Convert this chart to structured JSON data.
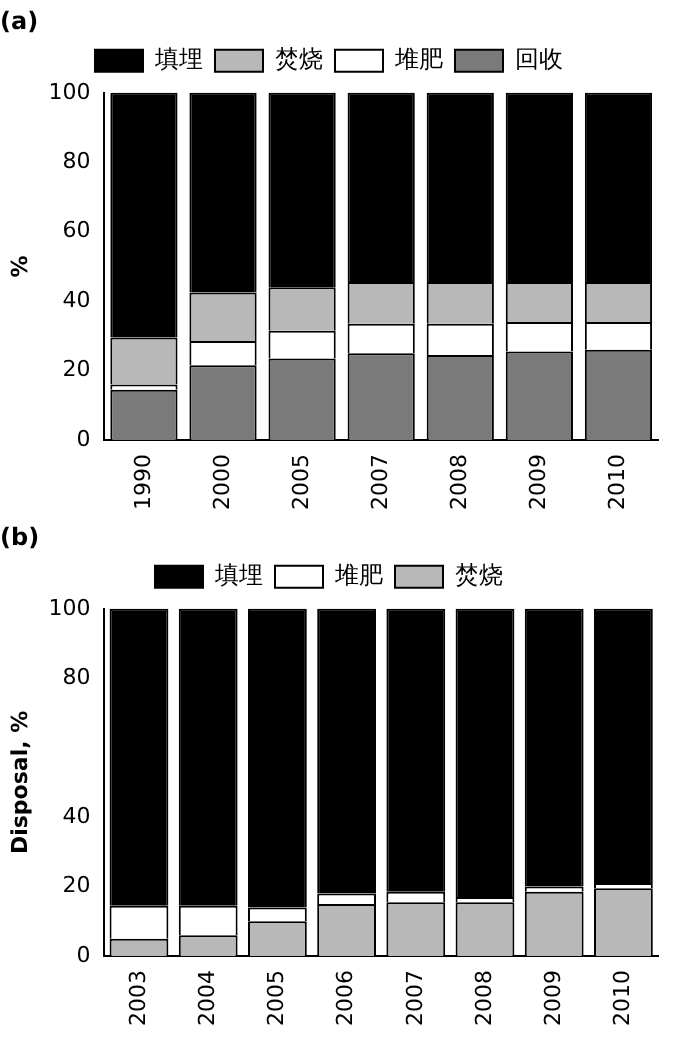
{
  "chart_data": [
    {
      "type": "bar",
      "title": "(a)",
      "ylabel": "%",
      "stacked": true,
      "legend": "top",
      "grid": false,
      "categories": [
        "1990",
        "2000",
        "2005",
        "2007",
        "2008",
        "2009",
        "2010"
      ],
      "ylim": [
        0,
        100
      ],
      "yticks": [
        0,
        20,
        40,
        60,
        80,
        100
      ],
      "series": [
        {
          "name": "回收",
          "color": "#7a7a7a",
          "values": [
            14.5,
            21.5,
            23.5,
            25,
            24.5,
            25.5,
            26
          ]
        },
        {
          "name": "堆肥",
          "color": "#ffffff",
          "values": [
            1.5,
            7,
            8,
            8.5,
            9,
            8.5,
            8
          ]
        },
        {
          "name": "焚烧",
          "color": "#b8b8b8",
          "values": [
            13.5,
            14,
            12.5,
            12,
            12,
            11.5,
            11.5
          ]
        },
        {
          "name": "填埋",
          "color": "#000000",
          "values": [
            70.5,
            57.5,
            56,
            54.5,
            54.5,
            54.5,
            54.5
          ]
        }
      ]
    },
    {
      "type": "bar",
      "title": "(b)",
      "ylabel": "Disposal, %",
      "stacked": true,
      "legend": "top",
      "grid": false,
      "categories": [
        "2003",
        "2004",
        "2005",
        "2006",
        "2007",
        "2008",
        "2009",
        "2010"
      ],
      "ylim": [
        0,
        100
      ],
      "yticks": [
        0,
        20,
        40,
        80,
        100
      ],
      "series": [
        {
          "name": "焚烧",
          "color": "#b8b8b8",
          "values": [
            5,
            6,
            10,
            15,
            15.5,
            15.5,
            18.5,
            19.5
          ]
        },
        {
          "name": "堆肥",
          "color": "#ffffff",
          "values": [
            9.5,
            8.5,
            4,
            3,
            3,
            1.5,
            1.5,
            1.5
          ]
        },
        {
          "name": "填埋",
          "color": "#000000",
          "values": [
            85.5,
            85.5,
            86,
            82,
            81.5,
            83,
            80,
            79
          ]
        }
      ]
    }
  ]
}
